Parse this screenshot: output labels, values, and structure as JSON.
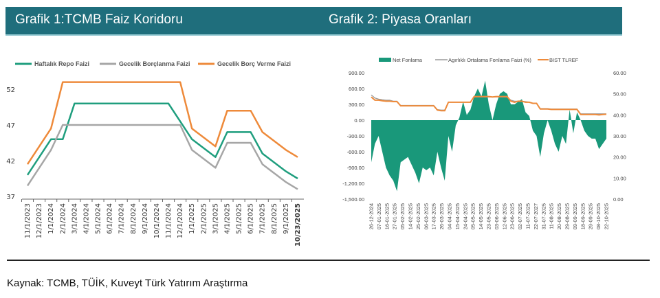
{
  "header": {
    "title1": "Grafik 1:TCMB Faiz Koridoru",
    "title2": "Grafik 2: Piyasa Oranları"
  },
  "source": "Kaynak: TCMB, TÜİK,  Kuveyt Türk Yatırım Araştırma",
  "colors": {
    "header": "#1f6e7c",
    "green": "#1f9e7e",
    "grey": "#a6a6a6",
    "orange": "#ee8a3a",
    "teal_area": "#19987a"
  },
  "chart_data": [
    {
      "type": "line",
      "categories": [
        "11/1/2023",
        "12/1/2023",
        "1/1/2024",
        "2/1/2024",
        "3/1/2024",
        "4/1/2024",
        "5/1/2024",
        "6/1/2024",
        "7/1/2024",
        "8/1/2024",
        "9/1/2024",
        "10/1/2024",
        "11/1/2024",
        "12/1/2024",
        "1/1/2025",
        "2/1/2025",
        "3/1/2025",
        "4/1/2025",
        "5/1/2025",
        "6/1/2025",
        "7/1/2025",
        "8/1/2025",
        "9/1/2025",
        "10/23/2025"
      ],
      "yticks": [
        37,
        42,
        47,
        52
      ],
      "ylim": [
        37,
        54
      ],
      "legend": "top",
      "series": [
        {
          "name": "Haftalık Repo Faizi",
          "color": "#1f9e7e",
          "values": [
            40,
            42.5,
            45,
            45,
            50,
            50,
            50,
            50,
            50,
            50,
            50,
            50,
            50,
            47.5,
            45,
            43.75,
            42.5,
            46,
            46,
            46,
            43,
            41.75,
            40.5,
            39.5
          ]
        },
        {
          "name": "Gecelik Borçlanma Faizi",
          "color": "#a6a6a6",
          "values": [
            38.5,
            41,
            43.5,
            47,
            47,
            47,
            47,
            47,
            47,
            47,
            47,
            47,
            47,
            47,
            43.5,
            42.25,
            41,
            44.5,
            44.5,
            44.5,
            41.5,
            40.25,
            39,
            38
          ]
        },
        {
          "name": "Gecelik Borç Verme Faizi",
          "color": "#ee8a3a",
          "values": [
            41.5,
            44,
            46.5,
            53,
            53,
            53,
            53,
            53,
            53,
            53,
            53,
            53,
            53,
            53,
            46.5,
            45.25,
            44,
            49,
            49,
            49,
            46,
            44.75,
            43.5,
            42.5
          ]
        }
      ]
    },
    {
      "type": "area+line",
      "xtick_labels": [
        "26-12-2024",
        "07-01-2025",
        "16-01-2025",
        "27-01-2025",
        "05-02-2025",
        "14-02-2025",
        "25-02-2025",
        "06-03-2025",
        "17-03-2025",
        "26-03-2025",
        "04-04-2025",
        "15-04-2025",
        "24-04-2025",
        "05-05-2025",
        "14-05-2025",
        "23-05-2025",
        "03-06-2025",
        "12-06-2025",
        "23-06-2025",
        "02-07-2025",
        "11-07-2025",
        "22-07-2027",
        "31-07-2025",
        "11-08-2025",
        "20-08-2025",
        "29-08-2025",
        "09-09-2025",
        "18-09-2025",
        "29-09-2025",
        "08-10-2025",
        "22-10-2025"
      ],
      "left_yticks": [
        "900.00",
        "600.00",
        "300.00",
        "0.00",
        "-300.00",
        "-600.00",
        "-900.00",
        "-1,200.00",
        "-1,500.00"
      ],
      "right_yticks": [
        "60.00",
        "50.00",
        "40.00",
        "30.00",
        "20.00",
        "10.00",
        "0.00"
      ],
      "left_ylim": [
        -1500,
        900
      ],
      "right_ylim": [
        0,
        60
      ],
      "legend": "top",
      "series": [
        {
          "name": "Net Fonlama",
          "axis": "left",
          "kind": "area",
          "color": "#19987a",
          "values": [
            -800,
            -450,
            -300,
            -600,
            -900,
            -1050,
            -1150,
            -1350,
            -800,
            -750,
            -700,
            -850,
            -1000,
            -1200,
            -900,
            -950,
            -900,
            -1050,
            -600,
            -900,
            -1150,
            -300,
            -600,
            -100,
            50,
            350,
            100,
            200,
            450,
            600,
            450,
            750,
            300,
            0,
            300,
            500,
            550,
            500,
            300,
            300,
            350,
            400,
            150,
            80,
            -200,
            -300,
            -700,
            -250,
            0,
            -200,
            -450,
            -600,
            -300,
            -450,
            200,
            -250,
            150,
            0,
            -200,
            -300,
            -350,
            -350,
            -550,
            -450,
            -350
          ]
        },
        {
          "name": "Agırlıklı Ortalama Fonlama Faizi (%)",
          "axis": "right",
          "kind": "line",
          "color": "#9a9a9a",
          "values": [
            49.5,
            48,
            47.5,
            47.2,
            47,
            47,
            46.5,
            46.5,
            44.5,
            44.5,
            44.5,
            44.5,
            44.5,
            44.5,
            44.5,
            44.5,
            44.5,
            44.5,
            42.5,
            42.3,
            42.3,
            46,
            46,
            46,
            46,
            46,
            46,
            46,
            48.5,
            48.5,
            48.5,
            48.5,
            48.5,
            48.5,
            48.5,
            48.5,
            48.5,
            48.5,
            47,
            46.5,
            46.5,
            46.5,
            46.3,
            46,
            45.5,
            45.5,
            43,
            43,
            43,
            42.8,
            42.8,
            42.8,
            42.8,
            42.8,
            42.8,
            42.8,
            42.8,
            40.5,
            40.5,
            40.5,
            40.5,
            40.5,
            40.5,
            40.5,
            40.5
          ]
        },
        {
          "name": "BIST TLREF",
          "axis": "right",
          "kind": "line",
          "color": "#ee8a3a",
          "values": [
            48.5,
            47,
            47,
            46.7,
            46.5,
            46.5,
            46.3,
            46.3,
            44.3,
            44.3,
            44.3,
            44.3,
            44.3,
            44.3,
            44.3,
            44.3,
            44.3,
            44.3,
            42.3,
            42,
            42,
            46,
            46,
            46,
            46,
            46,
            46,
            46,
            48.7,
            48.7,
            48.7,
            48.7,
            48.7,
            48.5,
            48.7,
            48.7,
            48.7,
            48.7,
            46.5,
            46,
            46.5,
            46.5,
            46,
            46,
            45.5,
            45.5,
            42.8,
            42.8,
            42.8,
            42.6,
            42.6,
            42.6,
            42.6,
            42.6,
            42.6,
            42.6,
            42.6,
            40.2,
            40.2,
            40.2,
            40.2,
            40.2,
            40,
            40.2,
            40.3
          ]
        }
      ]
    }
  ]
}
